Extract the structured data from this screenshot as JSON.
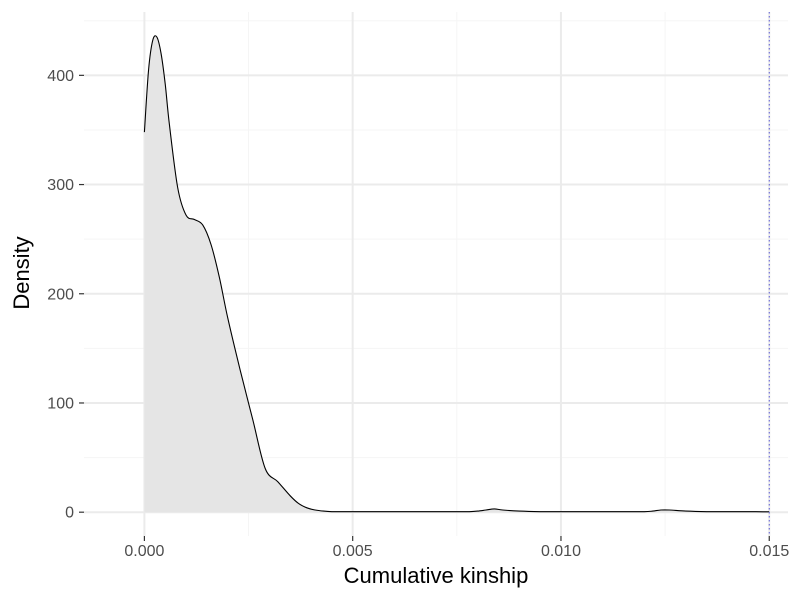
{
  "chart_data": {
    "type": "area",
    "xlabel": "Cumulative kinship",
    "ylabel": "Density",
    "xlim": [
      -0.00145,
      0.01545
    ],
    "ylim": [
      -21.8,
      458
    ],
    "x_ticks": [
      0.0,
      0.005,
      0.01,
      0.015
    ],
    "x_tick_labels": [
      "0.000",
      "0.005",
      "0.010",
      "0.015"
    ],
    "y_ticks": [
      0,
      100,
      200,
      300,
      400
    ],
    "y_tick_labels": [
      "0",
      "100",
      "200",
      "300",
      "400"
    ],
    "grid": true,
    "reference_line": {
      "x": 0.015,
      "style": "dotted",
      "color": "#5b5bd6"
    },
    "colors": {
      "fill": "#e5e5e5",
      "line": "#000000",
      "grid_major": "#ebebeb",
      "grid_minor": "#f5f5f5",
      "tick_label": "#4d4d4d"
    },
    "series": [
      {
        "x": [
          0.0,
          0.0001,
          0.0002,
          0.0003,
          0.0004,
          0.0005,
          0.0006,
          0.0008,
          0.001,
          0.0012,
          0.0014,
          0.0016,
          0.0018,
          0.002,
          0.0023,
          0.0026,
          0.0029,
          0.0032,
          0.0035,
          0.0037,
          0.0039,
          0.0041,
          0.0043,
          0.0045,
          0.0048,
          0.0052,
          0.0056,
          0.006,
          0.0065,
          0.007,
          0.0075,
          0.0078,
          0.008,
          0.0082,
          0.0084,
          0.0086,
          0.009,
          0.0095,
          0.01,
          0.0105,
          0.011,
          0.0115,
          0.012,
          0.0122,
          0.0124,
          0.0126,
          0.013,
          0.0135,
          0.014,
          0.0145,
          0.015
        ],
        "y": [
          348,
          405,
          432,
          435,
          420,
          392,
          355,
          297,
          272,
          268,
          263,
          245,
          215,
          178,
          130,
          85,
          40,
          28,
          15,
          8,
          4,
          2,
          1,
          0.5,
          0.5,
          0.5,
          0.5,
          0.5,
          0.5,
          0.5,
          0.5,
          0.5,
          1,
          2,
          3,
          2,
          1,
          0.5,
          0.5,
          0.5,
          0.5,
          0.5,
          0.5,
          1,
          2,
          2,
          1,
          0.5,
          0.5,
          0.5,
          0.3
        ]
      }
    ]
  }
}
